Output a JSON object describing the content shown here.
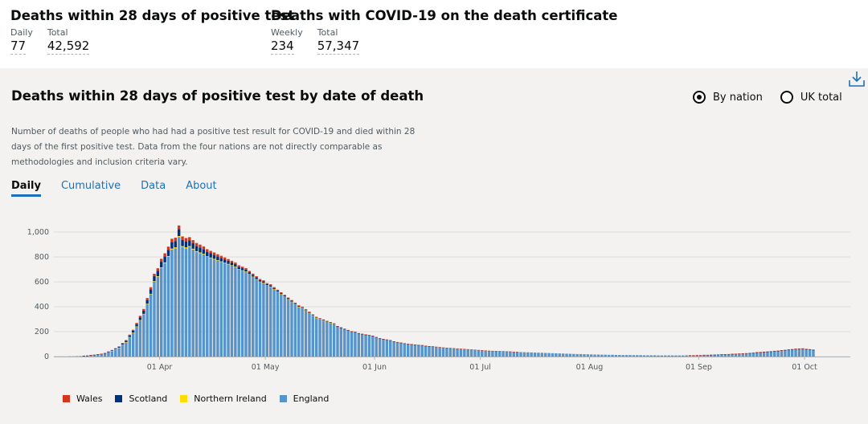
{
  "headline": {
    "left": {
      "title": "Deaths within 28 days of positive test",
      "stats": [
        {
          "label": "Daily",
          "value": "77"
        },
        {
          "label": "Total",
          "value": "42,592"
        }
      ]
    },
    "right": {
      "title": "Deaths with COVID-19 on the death certificate",
      "stats": [
        {
          "label": "Weekly",
          "value": "234"
        },
        {
          "label": "Total",
          "value": "57,347"
        }
      ]
    }
  },
  "card": {
    "title": "Deaths within 28 days of positive test by date of death",
    "description": "Number of deaths of people who had had a positive test result for COVID-19 and died within 28 days of the first positive test. Data from the four nations are not directly comparable as methodologies and inclusion criteria vary.",
    "download_icon": "download-icon",
    "radios": [
      {
        "label": "By nation",
        "selected": true
      },
      {
        "label": "UK total",
        "selected": false
      }
    ],
    "tabs": [
      "Daily",
      "Cumulative",
      "Data",
      "About"
    ],
    "active_tab": "Daily"
  },
  "colors": {
    "england": "#5694ca",
    "wales": "#d4351c",
    "scotland": "#003078",
    "northern_ireland": "#ffdd00",
    "link": "#1d70b8"
  },
  "chart_data": {
    "type": "bar",
    "stacked": true,
    "x_start": "2020-03-02",
    "x_end": "2020-10-13",
    "ylim": [
      0,
      1000
    ],
    "y_ticks": [
      "0",
      "200",
      "400",
      "600",
      "800",
      "1,000"
    ],
    "x_ticks": [
      "01 Apr",
      "01 May",
      "01 Jun",
      "01 Jul",
      "01 Aug",
      "01 Sep",
      "01 Oct"
    ],
    "x_tick_dates": [
      "2020-04-01",
      "2020-05-01",
      "2020-06-01",
      "2020-07-01",
      "2020-08-01",
      "2020-09-01",
      "2020-10-01"
    ],
    "grid": true,
    "legend_position": "bottom-left",
    "series": [
      {
        "name": "England",
        "color": "#5694ca",
        "values": [
          1,
          1,
          1,
          1,
          2,
          2,
          3,
          4,
          6,
          7,
          10,
          13,
          16,
          20,
          25,
          36,
          45,
          58,
          70,
          95,
          115,
          155,
          190,
          240,
          290,
          340,
          420,
          500,
          600,
          640,
          710,
          750,
          800,
          860,
          870,
          960,
          880,
          870,
          880,
          860,
          840,
          830,
          820,
          800,
          790,
          780,
          770,
          760,
          750,
          740,
          730,
          720,
          700,
          690,
          680,
          660,
          640,
          620,
          600,
          590,
          570,
          560,
          540,
          520,
          500,
          480,
          460,
          440,
          420,
          400,
          390,
          370,
          350,
          330,
          310,
          300,
          290,
          280,
          270,
          260,
          240,
          230,
          220,
          210,
          200,
          195,
          185,
          180,
          175,
          170,
          165,
          155,
          145,
          140,
          135,
          130,
          120,
          115,
          110,
          105,
          100,
          98,
          95,
          92,
          90,
          85,
          82,
          80,
          78,
          75,
          72,
          70,
          68,
          66,
          64,
          62,
          60,
          58,
          56,
          54,
          52,
          50,
          48,
          46,
          45,
          44,
          43,
          42,
          41,
          40,
          38,
          37,
          36,
          35,
          34,
          33,
          32,
          31,
          30,
          29,
          28,
          27,
          26,
          25,
          24,
          23,
          22,
          21,
          20,
          20,
          19,
          18,
          17,
          16,
          16,
          15,
          15,
          14,
          14,
          13,
          13,
          12,
          12,
          12,
          11,
          11,
          11,
          10,
          10,
          10,
          10,
          9,
          9,
          9,
          9,
          9,
          9,
          9,
          9,
          10,
          10,
          10,
          11,
          11,
          12,
          12,
          13,
          14,
          15,
          16,
          17,
          18,
          20,
          21,
          22,
          24,
          25,
          27,
          29,
          31,
          33,
          35,
          37,
          39,
          42,
          44,
          47,
          50,
          53,
          56,
          59,
          60,
          62,
          58,
          55,
          52
        ]
      },
      {
        "name": "Scotland",
        "color": "#003078",
        "values": [
          0,
          0,
          0,
          0,
          0,
          0,
          0,
          0,
          1,
          1,
          1,
          1,
          2,
          2,
          2,
          3,
          4,
          5,
          6,
          8,
          10,
          12,
          15,
          18,
          22,
          25,
          30,
          35,
          40,
          42,
          45,
          48,
          50,
          52,
          50,
          55,
          50,
          48,
          46,
          44,
          42,
          40,
          38,
          36,
          34,
          32,
          30,
          28,
          26,
          24,
          22,
          20,
          18,
          17,
          16,
          15,
          14,
          13,
          12,
          11,
          10,
          10,
          9,
          9,
          8,
          8,
          7,
          7,
          6,
          6,
          5,
          5,
          5,
          4,
          4,
          4,
          3,
          3,
          3,
          3,
          2,
          2,
          2,
          2,
          2,
          2,
          1,
          1,
          1,
          1,
          1,
          1,
          1,
          1,
          1,
          1,
          1,
          1,
          1,
          1,
          1,
          1,
          1,
          1,
          1,
          1,
          1,
          1,
          0,
          0,
          0,
          0,
          0,
          0,
          0,
          0,
          0,
          0,
          0,
          0,
          0,
          0,
          0,
          0,
          0,
          0,
          0,
          0,
          0,
          0,
          0,
          0,
          0,
          0,
          0,
          0,
          0,
          0,
          0,
          0,
          0,
          0,
          0,
          0,
          0,
          0,
          0,
          0,
          0,
          0,
          0,
          0,
          0,
          0,
          0,
          0,
          0,
          0,
          0,
          0,
          0,
          0,
          0,
          0,
          0,
          0,
          0,
          0,
          0,
          0,
          0,
          0,
          0,
          0,
          0,
          0,
          0,
          0,
          0,
          0,
          0,
          0,
          0,
          0,
          1,
          1,
          1,
          1,
          1,
          1,
          1,
          1,
          1,
          1,
          1,
          1,
          1,
          1,
          1,
          2,
          2,
          2,
          2,
          2,
          2,
          2,
          2,
          2,
          2,
          2,
          2,
          2,
          2,
          2,
          2,
          2,
          2,
          2,
          2
        ]
      },
      {
        "name": "Wales",
        "color": "#d4351c",
        "values": [
          0,
          0,
          0,
          0,
          0,
          0,
          0,
          0,
          0,
          0,
          1,
          1,
          1,
          1,
          2,
          2,
          3,
          3,
          4,
          5,
          6,
          7,
          8,
          10,
          12,
          14,
          16,
          18,
          20,
          22,
          24,
          25,
          26,
          27,
          28,
          30,
          28,
          27,
          26,
          25,
          24,
          23,
          22,
          21,
          20,
          19,
          18,
          17,
          16,
          15,
          14,
          13,
          12,
          12,
          11,
          11,
          10,
          10,
          9,
          9,
          8,
          8,
          8,
          7,
          7,
          7,
          6,
          6,
          6,
          5,
          5,
          5,
          5,
          4,
          4,
          4,
          4,
          3,
          3,
          3,
          3,
          3,
          2,
          2,
          2,
          2,
          2,
          2,
          2,
          2,
          2,
          1,
          1,
          1,
          1,
          1,
          1,
          1,
          1,
          1,
          1,
          1,
          1,
          1,
          1,
          1,
          1,
          1,
          1,
          1,
          1,
          1,
          1,
          1,
          1,
          1,
          1,
          1,
          1,
          1,
          1,
          1,
          1,
          1,
          1,
          1,
          1,
          1,
          1,
          1,
          1,
          1,
          0,
          0,
          0,
          0,
          0,
          0,
          0,
          0,
          0,
          0,
          0,
          0,
          0,
          0,
          0,
          0,
          0,
          0,
          0,
          0,
          0,
          0,
          0,
          0,
          0,
          0,
          0,
          0,
          0,
          0,
          0,
          0,
          0,
          0,
          0,
          0,
          0,
          0,
          0,
          0,
          0,
          0,
          0,
          0,
          0,
          0,
          0,
          0,
          1,
          1,
          1,
          1,
          1,
          1,
          1,
          1,
          1,
          1,
          1,
          1,
          1,
          1,
          1,
          1,
          1,
          1,
          1,
          2,
          2,
          2,
          2,
          2,
          2,
          2,
          2,
          2,
          2,
          2,
          2,
          2,
          2,
          2,
          2,
          2
        ]
      },
      {
        "name": "Northern Ireland",
        "color": "#ffdd00",
        "values": [
          0,
          0,
          0,
          0,
          0,
          0,
          0,
          0,
          0,
          0,
          0,
          0,
          0,
          0,
          0,
          0,
          1,
          1,
          1,
          1,
          1,
          2,
          2,
          2,
          3,
          3,
          4,
          4,
          5,
          5,
          6,
          6,
          7,
          7,
          7,
          8,
          7,
          7,
          7,
          6,
          6,
          6,
          5,
          5,
          5,
          5,
          4,
          4,
          4,
          4,
          3,
          3,
          3,
          3,
          3,
          2,
          2,
          2,
          2,
          2,
          2,
          2,
          1,
          1,
          1,
          1,
          1,
          1,
          1,
          1,
          1,
          1,
          1,
          1,
          1,
          1,
          1,
          1,
          1,
          1,
          0,
          0,
          0,
          0,
          0,
          0,
          0,
          0,
          0,
          0,
          0,
          0,
          0,
          0,
          0,
          0,
          0,
          0,
          0,
          0,
          0,
          0,
          0,
          0,
          0,
          0,
          0,
          0,
          0,
          0,
          0,
          0,
          0,
          0,
          0,
          0,
          0,
          0,
          0,
          0,
          0,
          0,
          0,
          0,
          0,
          0,
          0,
          0,
          0,
          0,
          0,
          0,
          0,
          0,
          0,
          0,
          0,
          0,
          0,
          0,
          0,
          0,
          0,
          0,
          0,
          0,
          0,
          0,
          0,
          0,
          0,
          0,
          0,
          0,
          0,
          0,
          0,
          0,
          0,
          0,
          0,
          0,
          0,
          0,
          0,
          0,
          0,
          0,
          0,
          0,
          0,
          0,
          0,
          0,
          0,
          0,
          0,
          0,
          0,
          0,
          0,
          0,
          0,
          0,
          0,
          0,
          0,
          0,
          0,
          0,
          0,
          0,
          0,
          0,
          0,
          0,
          0,
          0,
          0,
          0,
          0,
          0,
          0,
          0,
          0,
          0,
          0,
          0,
          0,
          0,
          0,
          0,
          0,
          0,
          0,
          0,
          1,
          1,
          1,
          1,
          1,
          1,
          1,
          1,
          1,
          1,
          1
        ]
      }
    ]
  }
}
